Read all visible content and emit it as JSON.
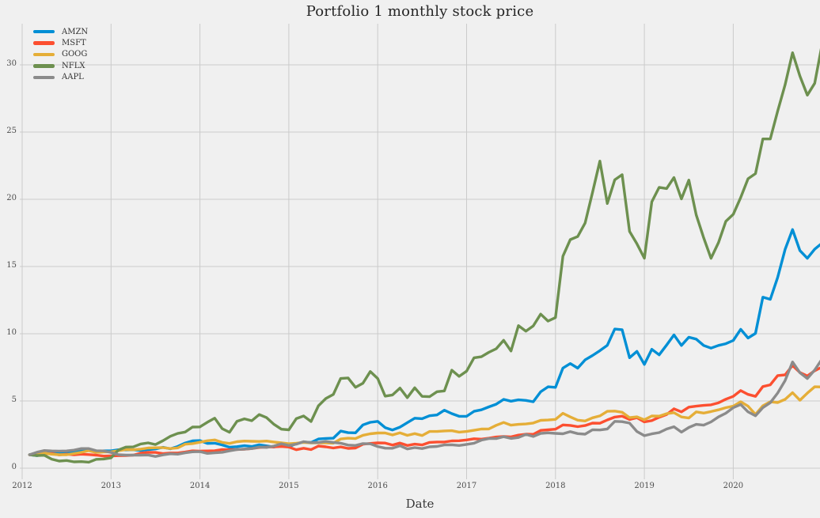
{
  "chart_data": {
    "type": "line",
    "title": "Portfolio 1 monthly stock price",
    "xlabel": "Date",
    "ylabel": "",
    "x_start": "2012-01",
    "x_frequency": "monthly",
    "x_tick_labels": [
      "2012",
      "2013",
      "2014",
      "2015",
      "2016",
      "2017",
      "2018",
      "2019",
      "2020"
    ],
    "y_ticks": [
      0,
      5,
      10,
      15,
      20,
      25,
      30
    ],
    "xlim_years": [
      2012,
      2021
    ],
    "ylim": [
      -0.6,
      33.0
    ],
    "grid": true,
    "legend_position": "upper-left",
    "colors": {
      "background": "#f0f0f0",
      "grid": "#cbcbcb",
      "tick_text": "#4d4d4d",
      "title_text": "#262626"
    },
    "series": [
      {
        "name": "AMZN",
        "color": "#008fd5",
        "values": [
          1.0,
          0.93,
          1.04,
          1.19,
          1.1,
          1.17,
          1.2,
          1.27,
          1.31,
          1.2,
          1.29,
          1.29,
          1.37,
          1.36,
          1.37,
          1.31,
          1.38,
          1.43,
          1.55,
          1.44,
          1.61,
          1.87,
          2.03,
          2.05,
          1.84,
          1.86,
          1.73,
          1.56,
          1.6,
          1.67,
          1.61,
          1.74,
          1.66,
          1.57,
          1.74,
          1.6,
          1.82,
          1.95,
          1.91,
          2.17,
          2.21,
          2.23,
          2.76,
          2.64,
          2.63,
          3.22,
          3.41,
          3.48,
          3.02,
          2.84,
          3.05,
          3.39,
          3.72,
          3.68,
          3.9,
          3.96,
          4.31,
          4.06,
          3.86,
          3.86,
          4.23,
          4.34,
          4.56,
          4.76,
          5.12,
          4.98,
          5.08,
          5.04,
          4.94,
          5.68,
          6.05,
          6.01,
          7.45,
          7.78,
          7.44,
          8.05,
          8.38,
          8.74,
          9.14,
          10.35,
          10.3,
          8.22,
          8.69,
          7.72,
          8.84,
          8.43,
          9.16,
          9.91,
          9.13,
          9.74,
          9.6,
          9.13,
          8.93,
          9.13,
          9.26,
          9.5,
          10.33,
          9.68,
          10.03,
          12.72,
          12.56,
          14.19,
          16.27,
          17.75,
          16.19,
          15.61,
          16.29,
          16.75
        ]
      },
      {
        "name": "MSFT",
        "color": "#fc4f30",
        "values": [
          1.0,
          1.08,
          1.09,
          1.08,
          0.99,
          1.04,
          1.0,
          1.04,
          1.01,
          0.97,
          0.9,
          0.91,
          0.93,
          0.94,
          0.97,
          1.12,
          1.18,
          1.17,
          1.08,
          1.13,
          1.13,
          1.2,
          1.29,
          1.27,
          1.28,
          1.3,
          1.39,
          1.37,
          1.39,
          1.41,
          1.46,
          1.54,
          1.57,
          1.59,
          1.62,
          1.57,
          1.37,
          1.48,
          1.38,
          1.65,
          1.59,
          1.5,
          1.58,
          1.47,
          1.5,
          1.78,
          1.84,
          1.88,
          1.87,
          1.72,
          1.87,
          1.69,
          1.79,
          1.73,
          1.92,
          1.95,
          1.95,
          2.03,
          2.04,
          2.1,
          2.19,
          2.16,
          2.23,
          2.32,
          2.36,
          2.33,
          2.46,
          2.53,
          2.52,
          2.81,
          2.85,
          2.9,
          3.22,
          3.18,
          3.09,
          3.17,
          3.35,
          3.34,
          3.59,
          3.8,
          3.87,
          3.62,
          3.76,
          3.44,
          3.54,
          3.79,
          3.99,
          4.42,
          4.19,
          4.54,
          4.61,
          4.67,
          4.71,
          4.86,
          5.13,
          5.34,
          5.77,
          5.49,
          5.34,
          6.07,
          6.2,
          6.89,
          6.94,
          7.64,
          7.12,
          6.86,
          7.25,
          7.53
        ]
      },
      {
        "name": "GOOG",
        "color": "#e5ae38",
        "values": [
          1.0,
          1.07,
          1.11,
          1.04,
          1.0,
          1.0,
          1.09,
          1.18,
          1.3,
          1.17,
          1.2,
          1.22,
          1.3,
          1.38,
          1.37,
          1.42,
          1.5,
          1.52,
          1.53,
          1.46,
          1.51,
          1.78,
          1.83,
          1.93,
          2.04,
          2.1,
          1.92,
          1.84,
          1.97,
          2.02,
          2.0,
          1.99,
          2.02,
          1.95,
          1.89,
          1.82,
          1.85,
          1.92,
          1.88,
          1.89,
          1.88,
          1.86,
          2.17,
          2.23,
          2.2,
          2.45,
          2.56,
          2.62,
          2.62,
          2.47,
          2.63,
          2.44,
          2.57,
          2.43,
          2.73,
          2.73,
          2.77,
          2.79,
          2.68,
          2.73,
          2.82,
          2.91,
          2.92,
          3.19,
          3.4,
          3.2,
          3.26,
          3.29,
          3.36,
          3.56,
          3.58,
          3.63,
          4.08,
          3.81,
          3.57,
          3.51,
          3.75,
          3.89,
          4.23,
          4.25,
          4.16,
          3.76,
          3.82,
          3.6,
          3.88,
          3.87,
          4.05,
          4.13,
          3.81,
          3.73,
          4.19,
          4.1,
          4.21,
          4.34,
          4.5,
          4.61,
          4.94,
          4.61,
          4.0,
          4.64,
          4.94,
          4.88,
          5.12,
          5.62,
          5.05,
          5.58,
          6.05,
          6.04
        ]
      },
      {
        "name": "NFLX",
        "color": "#6d904f",
        "values": [
          1.0,
          0.94,
          0.96,
          0.67,
          0.53,
          0.57,
          0.47,
          0.49,
          0.45,
          0.66,
          0.68,
          0.77,
          1.35,
          1.57,
          1.58,
          1.8,
          1.88,
          1.76,
          2.04,
          2.37,
          2.58,
          2.69,
          3.06,
          3.07,
          3.42,
          3.72,
          2.94,
          2.67,
          3.49,
          3.67,
          3.53,
          3.99,
          3.76,
          3.26,
          2.9,
          2.85,
          3.68,
          3.88,
          3.47,
          4.64,
          5.18,
          5.48,
          6.67,
          6.71,
          6.02,
          6.32,
          7.19,
          6.67,
          5.36,
          5.45,
          5.96,
          5.25,
          5.98,
          5.34,
          5.32,
          5.69,
          5.75,
          7.29,
          6.83,
          7.22,
          8.21,
          8.29,
          8.62,
          8.88,
          9.51,
          8.72,
          10.6,
          10.19,
          10.58,
          11.46,
          10.94,
          11.2,
          15.77,
          17.0,
          17.23,
          18.23,
          20.51,
          22.84,
          19.69,
          21.45,
          21.83,
          17.61,
          16.69,
          15.62,
          19.81,
          20.89,
          20.8,
          21.62,
          20.03,
          21.43,
          18.84,
          17.14,
          15.61,
          16.77,
          18.36,
          18.88,
          20.13,
          21.53,
          21.91,
          24.49,
          24.49,
          26.55,
          28.52,
          30.9,
          29.17,
          27.75,
          28.63,
          31.55
        ]
      },
      {
        "name": "AAPL",
        "color": "#8b8b8b",
        "values": [
          1.0,
          1.19,
          1.31,
          1.28,
          1.27,
          1.28,
          1.34,
          1.46,
          1.46,
          1.3,
          1.28,
          1.17,
          1.0,
          0.97,
          0.97,
          0.97,
          0.98,
          0.87,
          0.99,
          1.07,
          1.04,
          1.14,
          1.22,
          1.23,
          1.1,
          1.15,
          1.18,
          1.29,
          1.39,
          1.42,
          1.46,
          1.57,
          1.54,
          1.65,
          1.82,
          1.69,
          1.79,
          1.97,
          1.9,
          1.91,
          1.99,
          1.92,
          1.86,
          1.72,
          1.69,
          1.83,
          1.81,
          1.61,
          1.49,
          1.48,
          1.67,
          1.43,
          1.53,
          1.46,
          1.59,
          1.62,
          1.73,
          1.74,
          1.69,
          1.77,
          1.86,
          2.09,
          2.2,
          2.2,
          2.34,
          2.21,
          2.28,
          2.51,
          2.36,
          2.59,
          2.63,
          2.59,
          2.56,
          2.72,
          2.57,
          2.53,
          2.86,
          2.84,
          2.92,
          3.48,
          3.46,
          3.35,
          2.73,
          2.42,
          2.55,
          2.65,
          2.91,
          3.08,
          2.68,
          3.03,
          3.26,
          3.2,
          3.44,
          3.81,
          4.09,
          4.5,
          4.74,
          4.19,
          3.9,
          4.5,
          4.87,
          5.59,
          6.51,
          7.9,
          7.1,
          6.67,
          7.3,
          8.13
        ]
      }
    ]
  }
}
